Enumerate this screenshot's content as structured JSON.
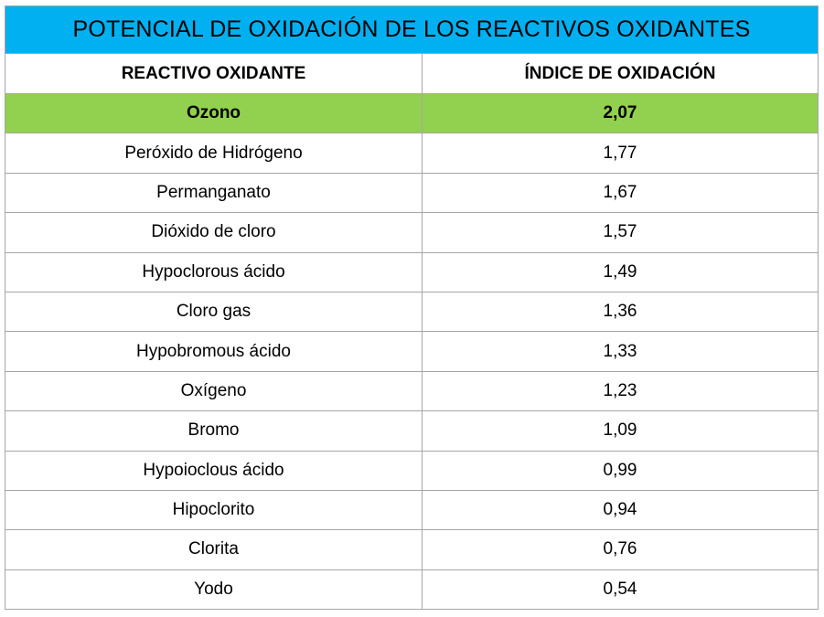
{
  "title": "POTENCIAL DE OXIDACIÓN DE LOS REACTIVOS OXIDANTES",
  "headers": [
    "REACTIVO OXIDANTE",
    "ÍNDICE DE OXIDACIÓN"
  ],
  "colors": {
    "title_bg": "#00b0f0",
    "highlight_bg": "#92d050",
    "border": "#a6a6a6"
  },
  "rows": [
    {
      "reactivo": "Ozono",
      "indice": "2,07",
      "highlight": true
    },
    {
      "reactivo": "Peróxido de Hidrógeno",
      "indice": "1,77"
    },
    {
      "reactivo": "Permanganato",
      "indice": "1,67"
    },
    {
      "reactivo": "Dióxido de cloro",
      "indice": "1,57"
    },
    {
      "reactivo": "Hypoclorous ácido",
      "indice": "1,49"
    },
    {
      "reactivo": "Cloro gas",
      "indice": "1,36"
    },
    {
      "reactivo": "Hypobromous ácido",
      "indice": "1,33"
    },
    {
      "reactivo": "Oxígeno",
      "indice": "1,23"
    },
    {
      "reactivo": "Bromo",
      "indice": "1,09"
    },
    {
      "reactivo": "Hypoioclous ácido",
      "indice": "0,99"
    },
    {
      "reactivo": "Hipoclorito",
      "indice": "0,94"
    },
    {
      "reactivo": "Clorita",
      "indice": "0,76"
    },
    {
      "reactivo": "Yodo",
      "indice": "0,54"
    }
  ]
}
